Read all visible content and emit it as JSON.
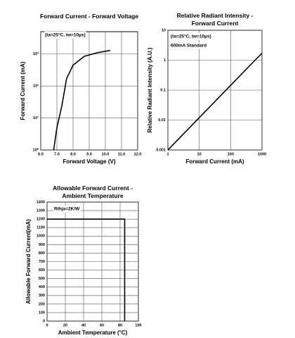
{
  "chart_data": [
    {
      "type": "line",
      "title": "Forward Current - Forward Voltage",
      "x_label": "Forward Voltage (V)",
      "y_label": "Forward Current (mA)",
      "annotations": [
        "(ta=25°C, tw=10µs)"
      ],
      "x": [
        6.8,
        7.0,
        7.3,
        7.6,
        8.0,
        8.7,
        9.5,
        10.3
      ],
      "series": [
        {
          "color": "#000000",
          "values": [
            1,
            5,
            23,
            170,
            450,
            850,
            1100,
            1300
          ]
        }
      ],
      "xlim": [
        6,
        12
      ],
      "xticks": [
        {
          "value": 6,
          "label": "6.0"
        },
        {
          "value": 7,
          "label": "7.0"
        },
        {
          "value": 8,
          "label": "8.0"
        },
        {
          "value": 9,
          "label": "9.0"
        },
        {
          "value": 10,
          "label": "10.0"
        },
        {
          "value": 11,
          "label": "11.0"
        },
        {
          "value": 12,
          "label": "12.0"
        }
      ],
      "ylim": [
        1,
        5000
      ],
      "yticks": [
        {
          "value": 1,
          "label": "10⁰"
        },
        {
          "value": 10,
          "label": "10¹"
        },
        {
          "value": 100,
          "label": "10²"
        },
        {
          "value": 1000,
          "label": "10³"
        }
      ],
      "y_scale": "log",
      "grid": true
    },
    {
      "type": "line",
      "title": "Relative Radiant Intensity - Forward Current",
      "x_label": "Forward Current (mA)",
      "y_label": "Relative Radiant Intensity (A.U.)",
      "annotations": [
        "(ta=25°C, tw=10µs)",
        "600mA Standard"
      ],
      "x": [
        1,
        600,
        1000
      ],
      "series": [
        {
          "color": "#000000",
          "values": [
            0.001,
            1,
            1.7
          ]
        }
      ],
      "xlim": [
        1,
        1000
      ],
      "xticks": [
        1,
        10,
        100,
        1000
      ],
      "ylim": [
        0.001,
        10
      ],
      "yticks": [
        0.001,
        0.01,
        0.1,
        1,
        10
      ],
      "x_scale": "log",
      "y_scale": "log",
      "grid": true
    },
    {
      "type": "line",
      "title": "Allowable Forward Current - Ambient Temperature",
      "x_label": "Ambient Temperature (°C)",
      "y_label": "Allowable Forward Current(mA)",
      "annotations": [
        "Rthja=2K/W"
      ],
      "x": [
        0,
        85,
        85
      ],
      "series": [
        {
          "color": "#000000",
          "values": [
            1200,
            1200,
            0
          ]
        }
      ],
      "xlim": [
        0,
        100
      ],
      "xticks": [
        0,
        20,
        40,
        60,
        80,
        100
      ],
      "ylim": [
        0,
        1400
      ],
      "yticks": [
        0,
        100,
        200,
        300,
        400,
        500,
        600,
        700,
        800,
        900,
        1000,
        1100,
        1200,
        1300,
        1400
      ],
      "grid": true
    }
  ]
}
